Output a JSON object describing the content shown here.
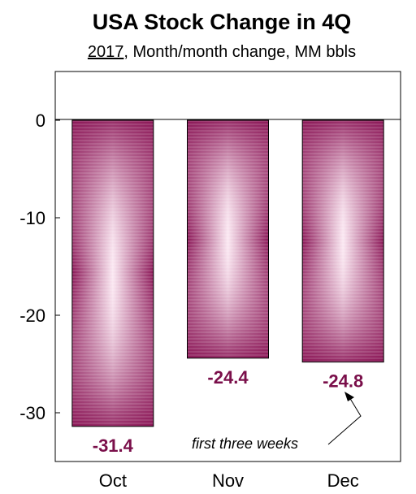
{
  "chart_data": {
    "type": "bar",
    "title": "USA Stock Change in 4Q",
    "subtitle_year": "2017",
    "subtitle_rest": ", Month/month change, MM bbls",
    "categories": [
      "Oct",
      "Nov",
      "Dec"
    ],
    "values": [
      -31.4,
      -24.4,
      -24.8
    ],
    "data_labels": [
      "-31.4",
      "-24.4",
      "-24.8"
    ],
    "ylim": [
      -35,
      5
    ],
    "yticks": [
      0,
      -10,
      -20,
      -30
    ],
    "ytick_labels": [
      "0",
      "-10",
      "-20",
      "-30"
    ],
    "annotation": "first three weeks",
    "annotation_target": "Dec",
    "grid": false,
    "colors": {
      "bar_edge": "#7a0f4a",
      "bar_center": "#fbe6f1",
      "label": "#7a0f4a"
    }
  }
}
